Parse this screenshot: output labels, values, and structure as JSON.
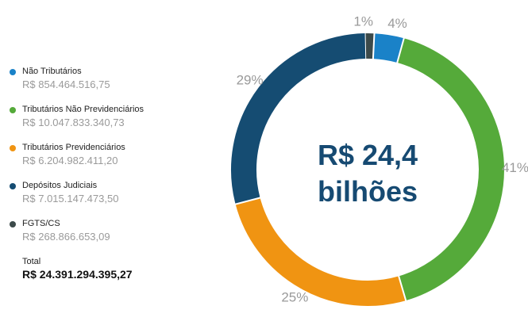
{
  "chart_data": {
    "type": "pie",
    "center_label": [
      "R$ 24,4",
      "bilhões"
    ],
    "series": [
      {
        "name": "Não Tributários",
        "value_label": "R$ 854.464.516,75",
        "value": 854464516.75,
        "percent_label": "4%",
        "color": "#1a82c8"
      },
      {
        "name": "Tributários Não Previdenciários",
        "value_label": "R$ 10.047.833.340,73",
        "value": 10047833340.73,
        "percent_label": "41%",
        "color": "#55aa3a"
      },
      {
        "name": "Tributários Previdenciários",
        "value_label": "R$ 6.204.982.411,20",
        "value": 6204982411.2,
        "percent_label": "25%",
        "color": "#f09412"
      },
      {
        "name": "Depósitos Judiciais",
        "value_label": "R$ 7.015.147.473,50",
        "value": 7015147473.5,
        "percent_label": "29%",
        "color": "#154c72"
      },
      {
        "name": "FGTS/CS",
        "value_label": "R$ 268.866.653,09",
        "value": 268866653.09,
        "percent_label": "1%",
        "color": "#3c4a4a"
      }
    ],
    "total_label": "Total",
    "total_value": "R$ 24.391.294.395,27"
  }
}
